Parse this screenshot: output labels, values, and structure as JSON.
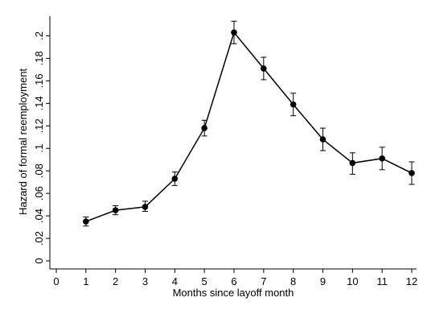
{
  "chart_data": {
    "type": "line",
    "xlabel": "Months since layoff month",
    "ylabel": "Hazard of formal reemployment",
    "xlim": [
      0,
      12
    ],
    "ylim": [
      0,
      0.22
    ],
    "x_ticks": [
      0,
      1,
      2,
      3,
      4,
      5,
      6,
      7,
      8,
      9,
      10,
      11,
      12
    ],
    "x_tick_labels": [
      "0",
      "1",
      "2",
      "3",
      "4",
      "5",
      "6",
      "7",
      "8",
      "9",
      "10",
      "11",
      "12"
    ],
    "y_ticks": [
      0,
      0.02,
      0.04,
      0.06,
      0.08,
      0.1,
      0.12,
      0.14,
      0.16,
      0.18,
      0.2
    ],
    "y_tick_labels": [
      "0",
      ".02",
      ".04",
      ".06",
      ".08",
      ".1",
      ".12",
      ".14",
      ".16",
      ".18",
      ".2"
    ],
    "grid": false,
    "legend": "none",
    "series": [
      {
        "x": [
          1,
          2,
          3,
          4,
          5,
          6,
          7,
          8,
          9,
          10,
          11,
          12
        ],
        "values": [
          0.035,
          0.045,
          0.048,
          0.073,
          0.118,
          0.203,
          0.171,
          0.139,
          0.108,
          0.087,
          0.091,
          0.078
        ],
        "ci_low": [
          0.031,
          0.041,
          0.044,
          0.067,
          0.111,
          0.193,
          0.161,
          0.129,
          0.098,
          0.077,
          0.081,
          0.068
        ],
        "ci_high": [
          0.039,
          0.049,
          0.053,
          0.079,
          0.125,
          0.213,
          0.181,
          0.149,
          0.118,
          0.096,
          0.101,
          0.088
        ],
        "color": "#000000"
      }
    ]
  }
}
